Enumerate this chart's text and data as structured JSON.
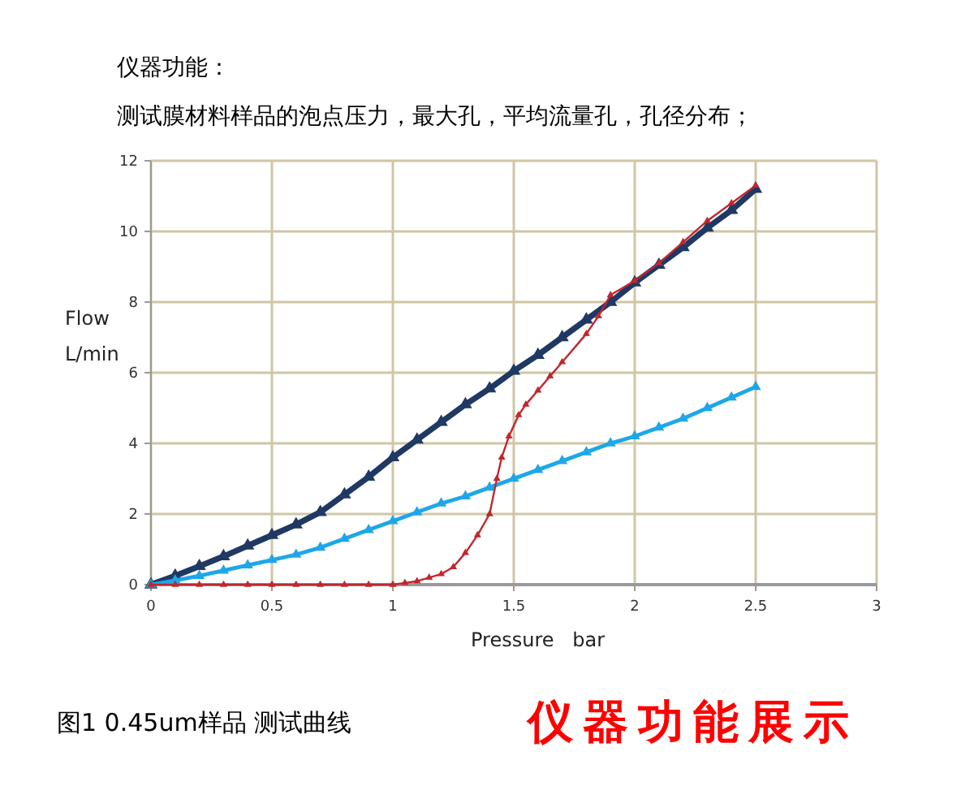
{
  "chart_data": {
    "type": "line",
    "title": "仪器功能：",
    "subtitle": "测试膜材料样品的泡点压力，最大孔，平均流量孔，孔径分布；",
    "xlabel": "Pressure   bar",
    "ylabel": "Flow L/min",
    "annotations": [
      "图1 0.45um样品 测试曲线",
      "仪器功能展示"
    ],
    "xlim": [
      0,
      3
    ],
    "xticks": [
      0,
      0.5,
      1,
      1.5,
      2,
      2.5,
      3
    ],
    "ylim": [
      0,
      12
    ],
    "yticks": [
      0,
      2,
      4,
      6,
      8,
      10,
      12
    ],
    "grid": true,
    "marker": "triangle",
    "line_style": "solid",
    "series": [
      {
        "color": "#1f3864",
        "x": [
          0,
          0.1,
          0.2,
          0.3,
          0.4,
          0.5,
          0.6,
          0.7,
          0.8,
          0.9,
          1.0,
          1.1,
          1.2,
          1.3,
          1.4,
          1.5,
          1.6,
          1.7,
          1.8,
          1.9,
          2.0,
          2.1,
          2.2,
          2.3,
          2.4,
          2.5
        ],
        "values": [
          0,
          0.25,
          0.52,
          0.8,
          1.1,
          1.4,
          1.7,
          2.05,
          2.55,
          3.05,
          3.6,
          4.1,
          4.6,
          5.1,
          5.55,
          6.05,
          6.5,
          7.0,
          7.5,
          8.0,
          8.55,
          9.05,
          9.55,
          10.1,
          10.6,
          11.2
        ]
      },
      {
        "color": "#1ea7e8",
        "x": [
          0,
          0.1,
          0.2,
          0.3,
          0.4,
          0.5,
          0.6,
          0.7,
          0.8,
          0.9,
          1.0,
          1.1,
          1.2,
          1.3,
          1.4,
          1.5,
          1.6,
          1.7,
          1.8,
          1.9,
          2.0,
          2.1,
          2.2,
          2.3,
          2.4,
          2.5
        ],
        "values": [
          0,
          0.12,
          0.25,
          0.4,
          0.55,
          0.7,
          0.85,
          1.05,
          1.3,
          1.55,
          1.8,
          2.05,
          2.3,
          2.5,
          2.75,
          3.0,
          3.25,
          3.5,
          3.75,
          4.0,
          4.2,
          4.45,
          4.7,
          5.0,
          5.3,
          5.6
        ]
      },
      {
        "color": "#c0272d",
        "x": [
          0,
          0.1,
          0.2,
          0.3,
          0.4,
          0.5,
          0.6,
          0.7,
          0.8,
          0.9,
          1.0,
          1.05,
          1.1,
          1.15,
          1.2,
          1.25,
          1.3,
          1.35,
          1.4,
          1.43,
          1.45,
          1.48,
          1.52,
          1.55,
          1.6,
          1.65,
          1.7,
          1.8,
          1.85,
          1.9,
          2.0,
          2.1,
          2.2,
          2.3,
          2.4,
          2.5
        ],
        "values": [
          0,
          0,
          0,
          0,
          0,
          0,
          0,
          0,
          0,
          0,
          0,
          0.05,
          0.1,
          0.2,
          0.3,
          0.5,
          0.9,
          1.4,
          2.0,
          3.0,
          3.6,
          4.2,
          4.8,
          5.1,
          5.5,
          5.9,
          6.3,
          7.1,
          7.6,
          8.2,
          8.6,
          9.1,
          9.7,
          10.3,
          10.8,
          11.3
        ]
      }
    ]
  }
}
